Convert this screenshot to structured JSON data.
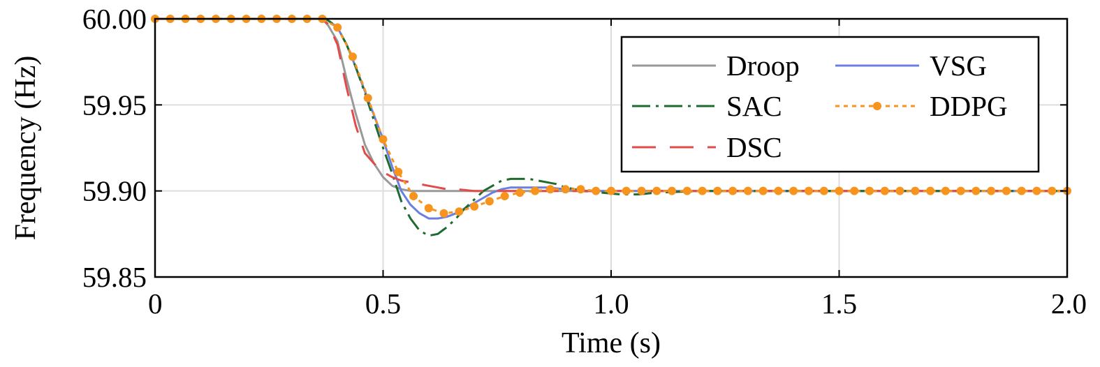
{
  "chart_data": {
    "type": "line",
    "xlabel": "Time (s)",
    "ylabel": "Frequency (Hz)",
    "xlim": [
      0,
      2.0
    ],
    "ylim": [
      59.85,
      60.0
    ],
    "x_ticks": [
      "0",
      "0.5",
      "1.0",
      "1.5",
      "2.0"
    ],
    "x_tick_values": [
      0,
      0.5,
      1.0,
      1.5,
      2.0
    ],
    "y_ticks": [
      "59.85",
      "59.90",
      "59.95",
      "60.00"
    ],
    "y_tick_values": [
      59.85,
      59.9,
      59.95,
      60.0
    ],
    "grid": true,
    "legend_position": "top-right",
    "series": [
      {
        "name": "Droop",
        "color": "#999999",
        "style": "solid",
        "x": [
          0,
          0.36,
          0.37,
          0.38,
          0.4,
          0.42,
          0.44,
          0.46,
          0.48,
          0.5,
          0.52,
          0.54,
          0.56,
          0.58,
          0.6,
          0.65,
          0.7,
          0.8,
          1.0,
          1.2,
          1.5,
          2.0
        ],
        "y": [
          60.0,
          60.0,
          59.999,
          59.996,
          59.987,
          59.965,
          59.945,
          59.927,
          59.916,
          59.908,
          59.903,
          59.901,
          59.9,
          59.9,
          59.9,
          59.9,
          59.9,
          59.9,
          59.9,
          59.9,
          59.9,
          59.9
        ]
      },
      {
        "name": "SAC",
        "color": "#1e6b30",
        "style": "dash-dot",
        "x": [
          0,
          0.37,
          0.38,
          0.4,
          0.42,
          0.44,
          0.46,
          0.48,
          0.5,
          0.52,
          0.54,
          0.56,
          0.58,
          0.6,
          0.62,
          0.64,
          0.66,
          0.68,
          0.7,
          0.72,
          0.74,
          0.76,
          0.78,
          0.8,
          0.82,
          0.84,
          0.86,
          0.88,
          0.9,
          0.94,
          0.98,
          1.02,
          1.06,
          1.1,
          1.2,
          1.5,
          2.0
        ],
        "y": [
          60.0,
          60.0,
          59.999,
          59.995,
          59.985,
          59.972,
          59.957,
          59.941,
          59.925,
          59.91,
          59.894,
          59.884,
          59.877,
          59.874,
          59.875,
          59.879,
          59.884,
          59.89,
          59.895,
          59.9,
          59.903,
          59.906,
          59.907,
          59.907,
          59.907,
          59.906,
          59.905,
          59.904,
          59.902,
          59.9,
          59.899,
          59.898,
          59.898,
          59.899,
          59.9,
          59.9,
          59.9
        ]
      },
      {
        "name": "DSC",
        "color": "#e34a4a",
        "style": "long-dash",
        "x": [
          0,
          0.36,
          0.37,
          0.38,
          0.4,
          0.42,
          0.44,
          0.46,
          0.48,
          0.5,
          0.52,
          0.54,
          0.56,
          0.58,
          0.6,
          0.62,
          0.64,
          0.66,
          0.7,
          0.75,
          0.8,
          1.0,
          1.5,
          2.0
        ],
        "y": [
          60.0,
          60.0,
          59.999,
          59.997,
          59.985,
          59.96,
          59.938,
          59.922,
          59.916,
          59.911,
          59.908,
          59.906,
          59.905,
          59.904,
          59.903,
          59.902,
          59.901,
          59.901,
          59.9,
          59.9,
          59.9,
          59.9,
          59.9,
          59.9
        ]
      },
      {
        "name": "VSG",
        "color": "#6b7fe0",
        "style": "solid",
        "x": [
          0,
          0.37,
          0.38,
          0.4,
          0.42,
          0.44,
          0.46,
          0.48,
          0.5,
          0.52,
          0.54,
          0.56,
          0.58,
          0.6,
          0.62,
          0.64,
          0.66,
          0.68,
          0.7,
          0.72,
          0.74,
          0.76,
          0.78,
          0.8,
          0.82,
          0.84,
          0.86,
          0.9,
          0.95,
          1.0,
          1.2,
          1.5,
          2.0
        ],
        "y": [
          60.0,
          60.0,
          59.999,
          59.995,
          59.985,
          59.972,
          59.958,
          59.944,
          59.93,
          59.914,
          59.9,
          59.892,
          59.887,
          59.884,
          59.884,
          59.885,
          59.887,
          59.89,
          59.893,
          59.896,
          59.899,
          59.901,
          59.902,
          59.902,
          59.902,
          59.902,
          59.902,
          59.901,
          59.9,
          59.9,
          59.9,
          59.9,
          59.9
        ]
      },
      {
        "name": "DDPG",
        "color": "#f7941d",
        "style": "dotted-markers",
        "x": [
          0,
          0.0333,
          0.0667,
          0.1,
          0.1333,
          0.1667,
          0.2,
          0.2333,
          0.2667,
          0.3,
          0.3333,
          0.3667,
          0.4,
          0.4333,
          0.4667,
          0.5,
          0.5333,
          0.5667,
          0.6,
          0.6333,
          0.6667,
          0.7,
          0.7333,
          0.7667,
          0.8,
          0.8333,
          0.8667,
          0.9,
          0.9333,
          0.9667,
          1.0,
          1.0333,
          1.0667,
          1.1,
          1.1333,
          1.1667,
          1.2,
          1.2333,
          1.2667,
          1.3,
          1.3333,
          1.3667,
          1.4,
          1.4333,
          1.4667,
          1.5,
          1.5333,
          1.5667,
          1.6,
          1.6333,
          1.6667,
          1.7,
          1.7333,
          1.7667,
          1.8,
          1.8333,
          1.8667,
          1.9,
          1.9333,
          1.9667,
          2.0
        ],
        "y": [
          60.0,
          60.0,
          60.0,
          60.0,
          60.0,
          60.0,
          60.0,
          60.0,
          60.0,
          60.0,
          60.0,
          60.0,
          59.995,
          59.978,
          59.954,
          59.93,
          59.911,
          59.897,
          59.89,
          59.887,
          59.888,
          59.891,
          59.894,
          59.897,
          59.899,
          59.9,
          59.901,
          59.901,
          59.901,
          59.9,
          59.9,
          59.9,
          59.9,
          59.9,
          59.9,
          59.9,
          59.9,
          59.9,
          59.9,
          59.9,
          59.9,
          59.9,
          59.9,
          59.9,
          59.9,
          59.9,
          59.9,
          59.9,
          59.9,
          59.9,
          59.9,
          59.9,
          59.9,
          59.9,
          59.9,
          59.9,
          59.9,
          59.9,
          59.9,
          59.9,
          59.9
        ]
      }
    ]
  }
}
